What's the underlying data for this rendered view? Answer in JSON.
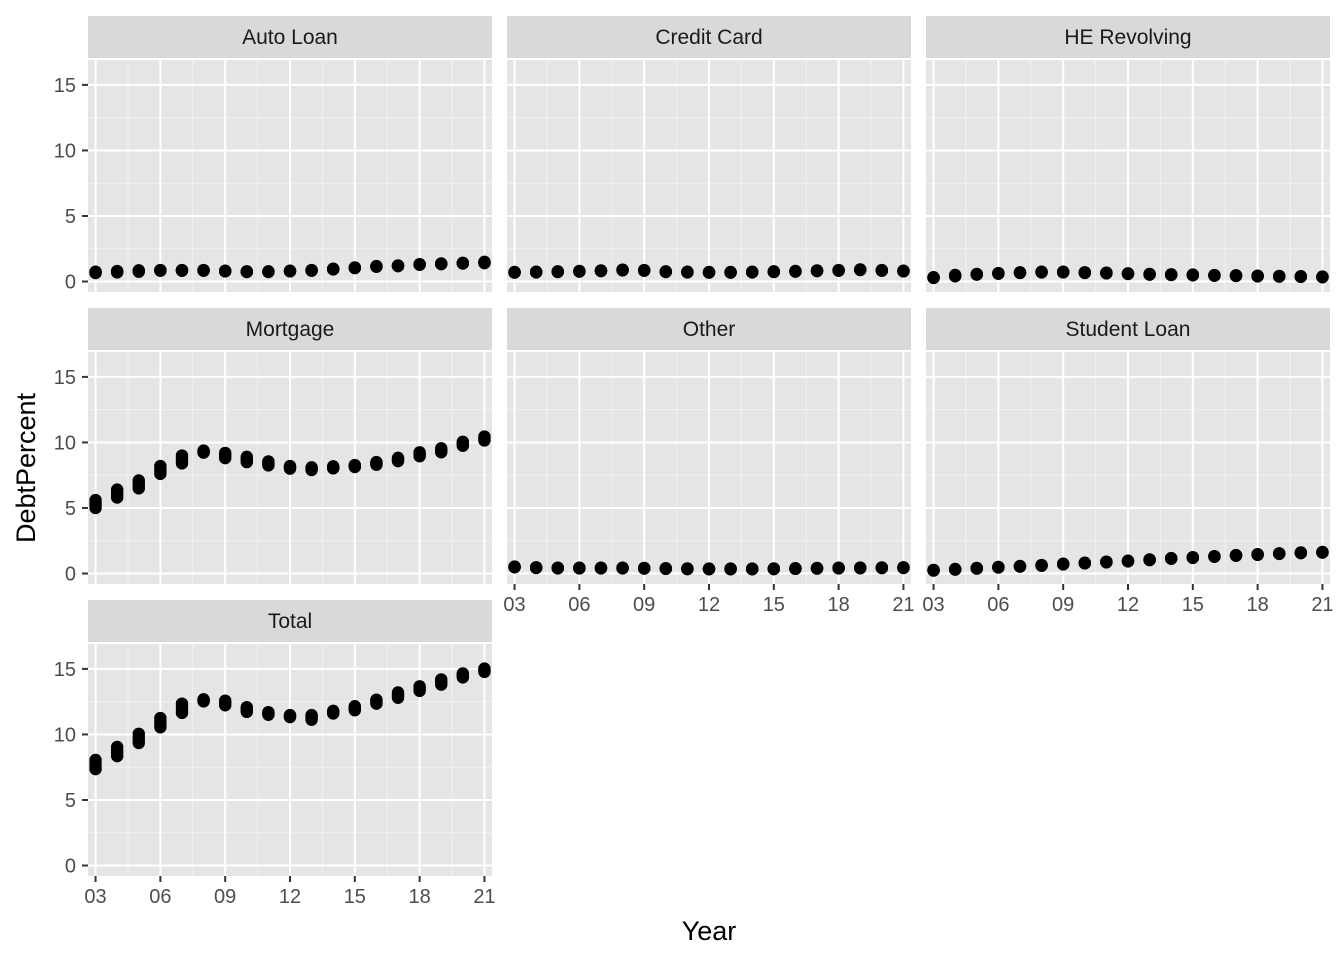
{
  "chart_data": {
    "type": "scatter",
    "facet": "wrap",
    "xlabel": "Year",
    "ylabel": "DebtPercent",
    "xlim": [
      2002.65,
      2021.35
    ],
    "ylim": [
      -0.8,
      16.9
    ],
    "x_ticks": [
      2003,
      2006,
      2009,
      2012,
      2015,
      2018,
      2021
    ],
    "x_tick_labels": [
      "03",
      "06",
      "09",
      "12",
      "15",
      "18",
      "21"
    ],
    "y_ticks": [
      0,
      5,
      10,
      15
    ],
    "y_tick_labels": [
      "0",
      "5",
      "10",
      "15"
    ],
    "grid": true,
    "point_color": "#000000",
    "panel_background": "#e5e5e5",
    "strip_background": "#d9d9d9",
    "panels": [
      {
        "name": "Auto Loan",
        "x": [
          2003,
          2004,
          2005,
          2006,
          2007,
          2008,
          2009,
          2010,
          2011,
          2012,
          2013,
          2014,
          2015,
          2016,
          2017,
          2018,
          2019,
          2020,
          2021
        ],
        "y": [
          0.7,
          0.75,
          0.8,
          0.85,
          0.85,
          0.85,
          0.8,
          0.75,
          0.75,
          0.8,
          0.85,
          0.95,
          1.05,
          1.15,
          1.2,
          1.3,
          1.35,
          1.4,
          1.45
        ],
        "y_spread": [
          0.1,
          0.1,
          0.1,
          0.05,
          0.05,
          0.05,
          0.05,
          0.05,
          0.05,
          0.05,
          0.05,
          0.05,
          0.05,
          0.05,
          0.05,
          0.05,
          0.05,
          0.05,
          0.1
        ]
      },
      {
        "name": "Credit Card",
        "x": [
          2003,
          2004,
          2005,
          2006,
          2007,
          2008,
          2009,
          2010,
          2011,
          2012,
          2013,
          2014,
          2015,
          2016,
          2017,
          2018,
          2019,
          2020,
          2021
        ],
        "y": [
          0.7,
          0.72,
          0.75,
          0.78,
          0.82,
          0.88,
          0.85,
          0.75,
          0.72,
          0.7,
          0.7,
          0.72,
          0.75,
          0.78,
          0.82,
          0.85,
          0.9,
          0.85,
          0.8
        ],
        "y_spread": [
          0.05,
          0.05,
          0.05,
          0.05,
          0.05,
          0.05,
          0.05,
          0.05,
          0.05,
          0.05,
          0.05,
          0.05,
          0.05,
          0.05,
          0.05,
          0.05,
          0.05,
          0.05,
          0.05
        ]
      },
      {
        "name": "HE Revolving",
        "x": [
          2003,
          2004,
          2005,
          2006,
          2007,
          2008,
          2009,
          2010,
          2011,
          2012,
          2013,
          2014,
          2015,
          2016,
          2017,
          2018,
          2019,
          2020,
          2021
        ],
        "y": [
          0.3,
          0.45,
          0.55,
          0.62,
          0.68,
          0.72,
          0.72,
          0.68,
          0.65,
          0.6,
          0.55,
          0.52,
          0.5,
          0.47,
          0.45,
          0.42,
          0.4,
          0.38,
          0.35
        ],
        "y_spread": [
          0.05,
          0.1,
          0.05,
          0.05,
          0.05,
          0.05,
          0.05,
          0.05,
          0.05,
          0.05,
          0.05,
          0.05,
          0.05,
          0.05,
          0.05,
          0.05,
          0.05,
          0.05,
          0.05
        ]
      },
      {
        "name": "Mortgage",
        "x": [
          2003,
          2004,
          2005,
          2006,
          2007,
          2008,
          2009,
          2010,
          2011,
          2012,
          2013,
          2014,
          2015,
          2016,
          2017,
          2018,
          2019,
          2020,
          2021
        ],
        "y": [
          5.3,
          6.1,
          6.8,
          7.9,
          8.7,
          9.3,
          9.0,
          8.7,
          8.4,
          8.1,
          8.0,
          8.1,
          8.2,
          8.4,
          8.7,
          9.1,
          9.4,
          9.9,
          10.3
        ],
        "y_spread": [
          0.6,
          0.6,
          0.6,
          0.6,
          0.6,
          0.15,
          0.4,
          0.4,
          0.3,
          0.2,
          0.2,
          0.15,
          0.15,
          0.2,
          0.25,
          0.3,
          0.3,
          0.3,
          0.3
        ]
      },
      {
        "name": "Other",
        "x": [
          2003,
          2004,
          2005,
          2006,
          2007,
          2008,
          2009,
          2010,
          2011,
          2012,
          2013,
          2014,
          2015,
          2016,
          2017,
          2018,
          2019,
          2020,
          2021
        ],
        "y": [
          0.5,
          0.45,
          0.42,
          0.42,
          0.42,
          0.42,
          0.4,
          0.38,
          0.36,
          0.35,
          0.35,
          0.35,
          0.36,
          0.38,
          0.4,
          0.42,
          0.43,
          0.44,
          0.45
        ],
        "y_spread": [
          0.05,
          0.05,
          0.05,
          0.05,
          0.05,
          0.05,
          0.05,
          0.05,
          0.05,
          0.05,
          0.05,
          0.05,
          0.05,
          0.05,
          0.05,
          0.05,
          0.05,
          0.05,
          0.05
        ]
      },
      {
        "name": "Student Loan",
        "x": [
          2003,
          2004,
          2005,
          2006,
          2007,
          2008,
          2009,
          2010,
          2011,
          2012,
          2013,
          2014,
          2015,
          2016,
          2017,
          2018,
          2019,
          2020,
          2021
        ],
        "y": [
          0.25,
          0.32,
          0.4,
          0.48,
          0.55,
          0.62,
          0.72,
          0.8,
          0.88,
          0.95,
          1.05,
          1.15,
          1.22,
          1.3,
          1.38,
          1.45,
          1.52,
          1.58,
          1.62
        ],
        "y_spread": [
          0.05,
          0.05,
          0.05,
          0.05,
          0.05,
          0.05,
          0.05,
          0.05,
          0.05,
          0.05,
          0.05,
          0.05,
          0.05,
          0.05,
          0.05,
          0.05,
          0.05,
          0.05,
          0.05
        ]
      },
      {
        "name": "Total",
        "x": [
          2003,
          2004,
          2005,
          2006,
          2007,
          2008,
          2009,
          2010,
          2011,
          2012,
          2013,
          2014,
          2015,
          2016,
          2017,
          2018,
          2019,
          2020,
          2021
        ],
        "y": [
          7.7,
          8.7,
          9.7,
          10.9,
          12.0,
          12.6,
          12.4,
          11.9,
          11.6,
          11.4,
          11.3,
          11.7,
          12.0,
          12.5,
          13.0,
          13.5,
          14.0,
          14.5,
          14.9
        ],
        "y_spread": [
          0.7,
          0.7,
          0.7,
          0.7,
          0.7,
          0.15,
          0.35,
          0.35,
          0.2,
          0.15,
          0.35,
          0.2,
          0.3,
          0.3,
          0.4,
          0.35,
          0.4,
          0.3,
          0.25
        ]
      }
    ]
  }
}
